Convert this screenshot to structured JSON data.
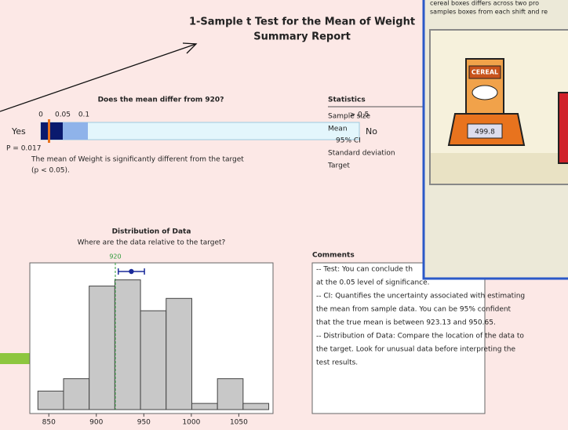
{
  "report": {
    "title": "1-Sample t Test for the Mean of Weight",
    "subtitle": "Summary Report",
    "test": {
      "question": "Does the mean differ from 920?",
      "scale_labels": [
        "0",
        "0.05",
        "0.1",
        "> 0.5"
      ],
      "yes": "Yes",
      "no": "No",
      "p_value": "P = 0.017",
      "conclusion": [
        "The mean of Weight is significantly different from the target",
        "(p < 0.05)."
      ]
    },
    "statistics": {
      "heading": "Statistics",
      "labels": [
        "Sample size",
        "Mean",
        "95% CI",
        "Standard deviation",
        "Target"
      ]
    },
    "comments": {
      "heading": "Comments",
      "lines": [
        "-- Test: You can conclude th",
        "at the 0.05 level of significance.",
        "-- CI: Quantifies the uncertainty associated with estimating",
        "the mean from sample data. You can be 95% confident",
        "that the true mean is between 923.13 and 950.65.",
        "-- Distribution of Data: Compare the location of the data to",
        "the target. Look for unusual data before interpreting the",
        "test results."
      ]
    }
  },
  "window": {
    "text": [
      "cereal boxes differs across two pro",
      "samples boxes from each shift and re"
    ],
    "box_label": "CEREAL",
    "scale_display": "499.8"
  },
  "chart_data": {
    "type": "histogram",
    "title": "Distribution of Data",
    "subtitle": "Where are the data relative to the target?",
    "bins": [
      838.5,
      865.5,
      892.5,
      919.5,
      946.5,
      973.5,
      1000.5,
      1027.5,
      1054.5,
      1081.5
    ],
    "values": [
      3,
      5,
      20,
      21,
      16,
      18,
      1,
      5,
      1
    ],
    "color": "#c8c8c8",
    "xlim": [
      830,
      1086
    ],
    "xticks": [
      850,
      900,
      950,
      1000,
      1050
    ],
    "ylim": [
      0,
      23.5
    ],
    "target": 920,
    "mean": 936.89,
    "ci": [
      923.13,
      950.65
    ]
  }
}
